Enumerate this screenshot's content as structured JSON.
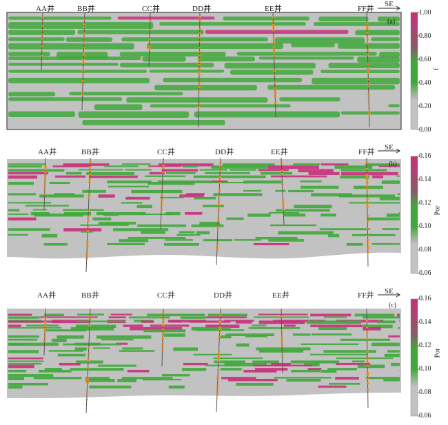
{
  "panels": [
    {
      "tag": "(a)",
      "direction": "SE",
      "wells": [
        "AA井",
        "BB井",
        "CC井",
        "DD井",
        "EE井",
        "FF井"
      ],
      "colorbar": {
        "title": "f",
        "ticks": [
          "1.00",
          "0.80",
          "0.60",
          "0.40",
          "0.20",
          "0.00"
        ]
      }
    },
    {
      "tag": "(b)",
      "direction": "SE",
      "wells": [
        "AA井",
        "BB井",
        "CC井",
        "DD井",
        "EE井",
        "FF井"
      ],
      "colorbar": {
        "title": "Por",
        "ticks": [
          "0.16",
          "0.14",
          "0.12",
          "0.10",
          "0.08",
          "0.06"
        ]
      }
    },
    {
      "tag": "(c)",
      "direction": "SE",
      "wells": [
        "AA井",
        "BB井",
        "CC井",
        "DD井",
        "EE井",
        "FF井"
      ],
      "colorbar": {
        "title": "Por",
        "ticks": [
          "0.16",
          "0.14",
          "0.12",
          "0.10",
          "0.08",
          "0.06"
        ]
      }
    }
  ],
  "colors": {
    "matrix_gray": "#c2c2c2",
    "green": "#3fa83a",
    "magenta": "#c8307a",
    "well_orange": "#f08a1e",
    "well_line": "#555555"
  }
}
